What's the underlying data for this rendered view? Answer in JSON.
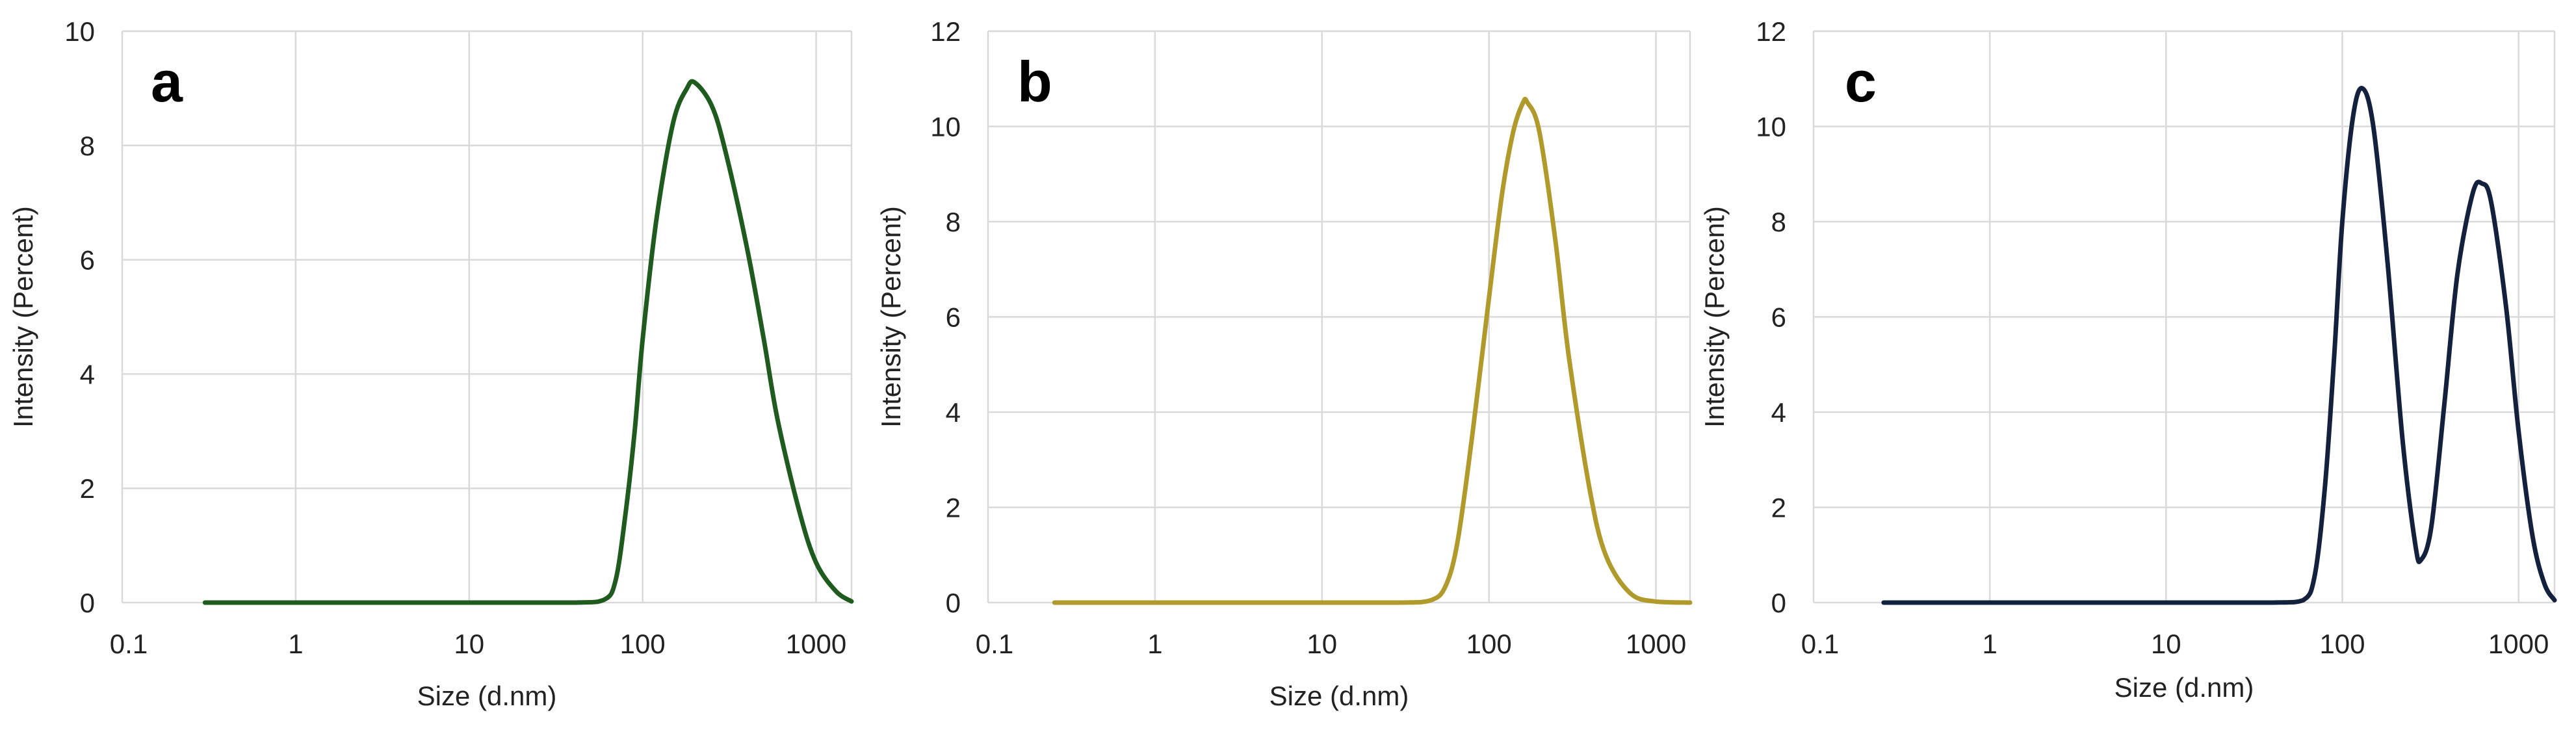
{
  "chart_data": [
    {
      "type": "line",
      "panel_label": "a",
      "xlabel": "Size (d.nm)",
      "ylabel": "Intensity (Percent)",
      "xscale": "log",
      "xlim": [
        0.1,
        1600
      ],
      "ylim": [
        0,
        10
      ],
      "x_ticks": [
        0.1,
        1,
        10,
        100,
        1000
      ],
      "x_tick_labels": [
        "0.1",
        "1",
        "10",
        "100",
        "1000"
      ],
      "y_ticks": [
        0,
        2,
        4,
        6,
        8,
        10
      ],
      "y_tick_labels": [
        "0",
        "2",
        "4",
        "6",
        "8",
        "10"
      ],
      "grid": true,
      "color": "#1f5a1f",
      "series": [
        {
          "x": [
            0.3,
            1,
            10,
            40,
            60,
            70,
            80,
            90,
            100,
            120,
            150,
            180,
            200,
            250,
            300,
            400,
            500,
            600,
            800,
            1000,
            1300,
            1600
          ],
          "y": [
            0,
            0,
            0,
            0,
            0.05,
            0.4,
            1.6,
            3.0,
            4.6,
            6.7,
            8.4,
            9.0,
            9.1,
            8.7,
            7.9,
            6.2,
            4.6,
            3.2,
            1.6,
            0.7,
            0.2,
            0.02
          ]
        }
      ]
    },
    {
      "type": "line",
      "panel_label": "b",
      "xlabel": "Size (d.nm)",
      "ylabel": "Intensity (Percent)",
      "xscale": "log",
      "xlim": [
        0.1,
        1600
      ],
      "ylim": [
        0,
        12
      ],
      "x_ticks": [
        0.1,
        1,
        10,
        100,
        1000
      ],
      "x_tick_labels": [
        "0.1",
        "1",
        "10",
        "100",
        "1000"
      ],
      "y_ticks": [
        0,
        2,
        4,
        6,
        8,
        10,
        12
      ],
      "y_tick_labels": [
        "0",
        "2",
        "4",
        "6",
        "8",
        "10",
        "12"
      ],
      "grid": true,
      "color": "#b09a2c",
      "series": [
        {
          "x": [
            0.25,
            1,
            10,
            30,
            45,
            55,
            65,
            80,
            100,
            120,
            140,
            160,
            170,
            200,
            250,
            300,
            400,
            500,
            700,
            1000,
            1600
          ],
          "y": [
            0,
            0,
            0,
            0,
            0.05,
            0.35,
            1.3,
            3.6,
            6.4,
            8.6,
            9.9,
            10.5,
            10.5,
            9.9,
            7.6,
            5.2,
            2.4,
            1.0,
            0.2,
            0.02,
            0
          ]
        }
      ]
    },
    {
      "type": "line",
      "panel_label": "c",
      "xlabel": "Size (d.nm)",
      "ylabel": "Intensity (Percent)",
      "xscale": "log",
      "xlim": [
        0.1,
        1600
      ],
      "ylim": [
        0,
        12
      ],
      "x_ticks": [
        0.1,
        1,
        10,
        100,
        1000
      ],
      "x_tick_labels": [
        "0.1",
        "1",
        "10",
        "100",
        "1000"
      ],
      "y_ticks": [
        0,
        2,
        4,
        6,
        8,
        10,
        12
      ],
      "y_tick_labels": [
        "0",
        "2",
        "4",
        "6",
        "8",
        "10",
        "12"
      ],
      "grid": true,
      "color": "#14213d",
      "series": [
        {
          "x": [
            0.25,
            1,
            10,
            40,
            60,
            70,
            80,
            90,
            100,
            115,
            130,
            150,
            180,
            220,
            260,
            280,
            320,
            380,
            450,
            550,
            620,
            700,
            850,
            1000,
            1200,
            1400,
            1600
          ],
          "y": [
            0,
            0,
            0,
            0,
            0.05,
            0.6,
            2.5,
            5.2,
            8.0,
            10.2,
            10.8,
            10.0,
            7.2,
            3.4,
            1.2,
            0.9,
            1.6,
            4.2,
            6.9,
            8.6,
            8.8,
            8.4,
            6.2,
            3.6,
            1.4,
            0.4,
            0.05
          ]
        }
      ]
    }
  ]
}
